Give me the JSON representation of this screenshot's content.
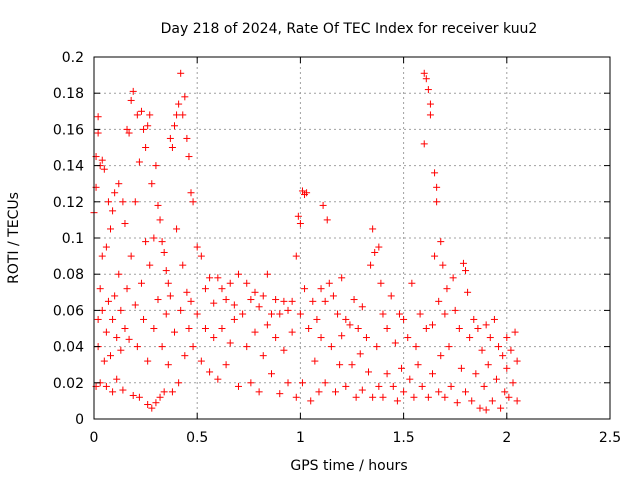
{
  "chart_data": {
    "type": "scatter",
    "title": "Day 218 of 2024, Rate Of TEC Index for receiver kuu2",
    "xlabel": "GPS time / hours",
    "ylabel": "ROTI / TECUs",
    "xlim": [
      0,
      2.5
    ],
    "ylim": [
      0,
      0.2
    ],
    "x_ticks": [
      0,
      0.5,
      1,
      1.5,
      2,
      2.5
    ],
    "x_tick_labels": [
      "0",
      "0.5",
      "1",
      "1.5",
      "2",
      "2.5"
    ],
    "y_ticks": [
      0,
      0.02,
      0.04,
      0.06,
      0.08,
      0.1,
      0.12,
      0.14,
      0.16,
      0.18,
      0.2
    ],
    "y_tick_labels": [
      "0",
      "0.02",
      "0.04",
      "0.06",
      "0.08",
      "0.1",
      "0.12",
      "0.14",
      "0.16",
      "0.18",
      "0.2"
    ],
    "grid": true,
    "marker": "+",
    "series": [
      {
        "name": "ROTI",
        "color": "#ff0000",
        "points": [
          [
            0.0,
            0.114
          ],
          [
            0.01,
            0.145
          ],
          [
            0.01,
            0.128
          ],
          [
            0.01,
            0.018
          ],
          [
            0.02,
            0.167
          ],
          [
            0.02,
            0.158
          ],
          [
            0.02,
            0.055
          ],
          [
            0.02,
            0.04
          ],
          [
            0.03,
            0.14
          ],
          [
            0.03,
            0.072
          ],
          [
            0.03,
            0.02
          ],
          [
            0.04,
            0.143
          ],
          [
            0.04,
            0.09
          ],
          [
            0.04,
            0.06
          ],
          [
            0.05,
            0.138
          ],
          [
            0.05,
            0.032
          ],
          [
            0.06,
            0.095
          ],
          [
            0.06,
            0.048
          ],
          [
            0.06,
            0.018
          ],
          [
            0.07,
            0.12
          ],
          [
            0.07,
            0.065
          ],
          [
            0.08,
            0.105
          ],
          [
            0.08,
            0.035
          ],
          [
            0.09,
            0.115
          ],
          [
            0.09,
            0.055
          ],
          [
            0.09,
            0.015
          ],
          [
            0.1,
            0.125
          ],
          [
            0.1,
            0.068
          ],
          [
            0.11,
            0.045
          ],
          [
            0.11,
            0.022
          ],
          [
            0.12,
            0.13
          ],
          [
            0.12,
            0.08
          ],
          [
            0.13,
            0.06
          ],
          [
            0.13,
            0.038
          ],
          [
            0.14,
            0.12
          ],
          [
            0.14,
            0.016
          ],
          [
            0.15,
            0.108
          ],
          [
            0.15,
            0.05
          ],
          [
            0.16,
            0.16
          ],
          [
            0.16,
            0.072
          ],
          [
            0.17,
            0.158
          ],
          [
            0.17,
            0.044
          ],
          [
            0.18,
            0.176
          ],
          [
            0.18,
            0.09
          ],
          [
            0.19,
            0.181
          ],
          [
            0.19,
            0.013
          ],
          [
            0.2,
            0.12
          ],
          [
            0.2,
            0.063
          ],
          [
            0.21,
            0.168
          ],
          [
            0.21,
            0.04
          ],
          [
            0.22,
            0.142
          ],
          [
            0.22,
            0.012
          ],
          [
            0.23,
            0.17
          ],
          [
            0.23,
            0.075
          ],
          [
            0.24,
            0.16
          ],
          [
            0.24,
            0.055
          ],
          [
            0.25,
            0.15
          ],
          [
            0.25,
            0.098
          ],
          [
            0.26,
            0.162
          ],
          [
            0.26,
            0.032
          ],
          [
            0.26,
            0.008
          ],
          [
            0.27,
            0.168
          ],
          [
            0.27,
            0.085
          ],
          [
            0.28,
            0.13
          ],
          [
            0.28,
            0.006
          ],
          [
            0.29,
            0.1
          ],
          [
            0.29,
            0.05
          ],
          [
            0.3,
            0.14
          ],
          [
            0.3,
            0.009
          ],
          [
            0.31,
            0.118
          ],
          [
            0.31,
            0.066
          ],
          [
            0.32,
            0.11
          ],
          [
            0.32,
            0.012
          ],
          [
            0.33,
            0.098
          ],
          [
            0.33,
            0.04
          ],
          [
            0.34,
            0.092
          ],
          [
            0.34,
            0.015
          ],
          [
            0.35,
            0.082
          ],
          [
            0.35,
            0.058
          ],
          [
            0.36,
            0.075
          ],
          [
            0.36,
            0.03
          ],
          [
            0.37,
            0.155
          ],
          [
            0.37,
            0.068
          ],
          [
            0.38,
            0.15
          ],
          [
            0.38,
            0.015
          ],
          [
            0.39,
            0.162
          ],
          [
            0.39,
            0.048
          ],
          [
            0.4,
            0.168
          ],
          [
            0.4,
            0.105
          ],
          [
            0.41,
            0.174
          ],
          [
            0.41,
            0.02
          ],
          [
            0.42,
            0.191
          ],
          [
            0.42,
            0.06
          ],
          [
            0.43,
            0.168
          ],
          [
            0.43,
            0.085
          ],
          [
            0.44,
            0.178
          ],
          [
            0.44,
            0.035
          ],
          [
            0.45,
            0.155
          ],
          [
            0.45,
            0.07
          ],
          [
            0.46,
            0.145
          ],
          [
            0.46,
            0.05
          ],
          [
            0.47,
            0.125
          ],
          [
            0.47,
            0.065
          ],
          [
            0.48,
            0.12
          ],
          [
            0.48,
            0.04
          ],
          [
            0.5,
            0.095
          ],
          [
            0.5,
            0.058
          ],
          [
            0.52,
            0.09
          ],
          [
            0.52,
            0.032
          ],
          [
            0.54,
            0.072
          ],
          [
            0.54,
            0.05
          ],
          [
            0.56,
            0.078
          ],
          [
            0.56,
            0.026
          ],
          [
            0.58,
            0.064
          ],
          [
            0.58,
            0.045
          ],
          [
            0.6,
            0.078
          ],
          [
            0.6,
            0.022
          ],
          [
            0.62,
            0.072
          ],
          [
            0.62,
            0.05
          ],
          [
            0.64,
            0.066
          ],
          [
            0.64,
            0.03
          ],
          [
            0.66,
            0.075
          ],
          [
            0.66,
            0.042
          ],
          [
            0.68,
            0.063
          ],
          [
            0.68,
            0.055
          ],
          [
            0.7,
            0.08
          ],
          [
            0.7,
            0.018
          ],
          [
            0.72,
            0.058
          ],
          [
            0.74,
            0.075
          ],
          [
            0.74,
            0.04
          ],
          [
            0.76,
            0.066
          ],
          [
            0.76,
            0.02
          ],
          [
            0.78,
            0.07
          ],
          [
            0.78,
            0.048
          ],
          [
            0.8,
            0.062
          ],
          [
            0.8,
            0.015
          ],
          [
            0.82,
            0.068
          ],
          [
            0.82,
            0.035
          ],
          [
            0.84,
            0.08
          ],
          [
            0.84,
            0.052
          ],
          [
            0.86,
            0.058
          ],
          [
            0.86,
            0.025
          ],
          [
            0.88,
            0.066
          ],
          [
            0.88,
            0.045
          ],
          [
            0.9,
            0.058
          ],
          [
            0.9,
            0.014
          ],
          [
            0.92,
            0.065
          ],
          [
            0.92,
            0.038
          ],
          [
            0.94,
            0.06
          ],
          [
            0.94,
            0.02
          ],
          [
            0.96,
            0.065
          ],
          [
            0.96,
            0.048
          ],
          [
            0.98,
            0.09
          ],
          [
            0.98,
            0.012
          ],
          [
            0.99,
            0.112
          ],
          [
            1.0,
            0.108
          ],
          [
            1.0,
            0.058
          ],
          [
            1.01,
            0.126
          ],
          [
            1.01,
            0.02
          ],
          [
            1.02,
            0.124
          ],
          [
            1.02,
            0.072
          ],
          [
            1.03,
            0.125
          ],
          [
            1.04,
            0.05
          ],
          [
            1.05,
            0.01
          ],
          [
            1.06,
            0.065
          ],
          [
            1.07,
            0.032
          ],
          [
            1.08,
            0.055
          ],
          [
            1.09,
            0.015
          ],
          [
            1.1,
            0.072
          ],
          [
            1.1,
            0.045
          ],
          [
            1.11,
            0.118
          ],
          [
            1.12,
            0.065
          ],
          [
            1.12,
            0.02
          ],
          [
            1.13,
            0.11
          ],
          [
            1.14,
            0.075
          ],
          [
            1.15,
            0.04
          ],
          [
            1.16,
            0.068
          ],
          [
            1.17,
            0.015
          ],
          [
            1.18,
            0.058
          ],
          [
            1.19,
            0.03
          ],
          [
            1.2,
            0.078
          ],
          [
            1.2,
            0.046
          ],
          [
            1.22,
            0.055
          ],
          [
            1.22,
            0.018
          ],
          [
            1.24,
            0.052
          ],
          [
            1.25,
            0.03
          ],
          [
            1.26,
            0.066
          ],
          [
            1.27,
            0.012
          ],
          [
            1.28,
            0.05
          ],
          [
            1.29,
            0.036
          ],
          [
            1.3,
            0.062
          ],
          [
            1.3,
            0.016
          ],
          [
            1.32,
            0.045
          ],
          [
            1.33,
            0.026
          ],
          [
            1.34,
            0.085
          ],
          [
            1.35,
            0.105
          ],
          [
            1.35,
            0.012
          ],
          [
            1.36,
            0.092
          ],
          [
            1.37,
            0.04
          ],
          [
            1.38,
            0.095
          ],
          [
            1.38,
            0.018
          ],
          [
            1.39,
            0.075
          ],
          [
            1.4,
            0.058
          ],
          [
            1.4,
            0.012
          ],
          [
            1.42,
            0.05
          ],
          [
            1.42,
            0.025
          ],
          [
            1.44,
            0.068
          ],
          [
            1.45,
            0.018
          ],
          [
            1.46,
            0.042
          ],
          [
            1.47,
            0.01
          ],
          [
            1.48,
            0.058
          ],
          [
            1.49,
            0.028
          ],
          [
            1.5,
            0.055
          ],
          [
            1.5,
            0.015
          ],
          [
            1.52,
            0.045
          ],
          [
            1.53,
            0.022
          ],
          [
            1.54,
            0.075
          ],
          [
            1.55,
            0.012
          ],
          [
            1.56,
            0.04
          ],
          [
            1.57,
            0.03
          ],
          [
            1.58,
            0.058
          ],
          [
            1.59,
            0.018
          ],
          [
            1.6,
            0.191
          ],
          [
            1.6,
            0.152
          ],
          [
            1.61,
            0.188
          ],
          [
            1.61,
            0.05
          ],
          [
            1.62,
            0.182
          ],
          [
            1.62,
            0.012
          ],
          [
            1.63,
            0.174
          ],
          [
            1.63,
            0.168
          ],
          [
            1.64,
            0.052
          ],
          [
            1.64,
            0.025
          ],
          [
            1.65,
            0.136
          ],
          [
            1.65,
            0.09
          ],
          [
            1.66,
            0.128
          ],
          [
            1.66,
            0.12
          ],
          [
            1.67,
            0.065
          ],
          [
            1.67,
            0.015
          ],
          [
            1.68,
            0.098
          ],
          [
            1.68,
            0.035
          ],
          [
            1.69,
            0.085
          ],
          [
            1.7,
            0.058
          ],
          [
            1.7,
            0.012
          ],
          [
            1.71,
            0.072
          ],
          [
            1.72,
            0.04
          ],
          [
            1.73,
            0.018
          ],
          [
            1.74,
            0.078
          ],
          [
            1.75,
            0.06
          ],
          [
            1.76,
            0.009
          ],
          [
            1.77,
            0.05
          ],
          [
            1.78,
            0.028
          ],
          [
            1.79,
            0.086
          ],
          [
            1.8,
            0.082
          ],
          [
            1.8,
            0.015
          ],
          [
            1.81,
            0.07
          ],
          [
            1.82,
            0.045
          ],
          [
            1.83,
            0.01
          ],
          [
            1.84,
            0.055
          ],
          [
            1.85,
            0.025
          ],
          [
            1.86,
            0.05
          ],
          [
            1.87,
            0.006
          ],
          [
            1.88,
            0.038
          ],
          [
            1.89,
            0.018
          ],
          [
            1.9,
            0.052
          ],
          [
            1.9,
            0.005
          ],
          [
            1.91,
            0.03
          ],
          [
            1.92,
            0.045
          ],
          [
            1.93,
            0.01
          ],
          [
            1.94,
            0.055
          ],
          [
            1.95,
            0.022
          ],
          [
            1.96,
            0.04
          ],
          [
            1.97,
            0.006
          ],
          [
            1.98,
            0.035
          ],
          [
            1.99,
            0.015
          ],
          [
            2.0,
            0.045
          ],
          [
            2.0,
            0.028
          ],
          [
            2.01,
            0.012
          ],
          [
            2.02,
            0.038
          ],
          [
            2.03,
            0.02
          ],
          [
            2.04,
            0.048
          ],
          [
            2.05,
            0.01
          ],
          [
            2.05,
            0.032
          ]
        ]
      }
    ]
  }
}
